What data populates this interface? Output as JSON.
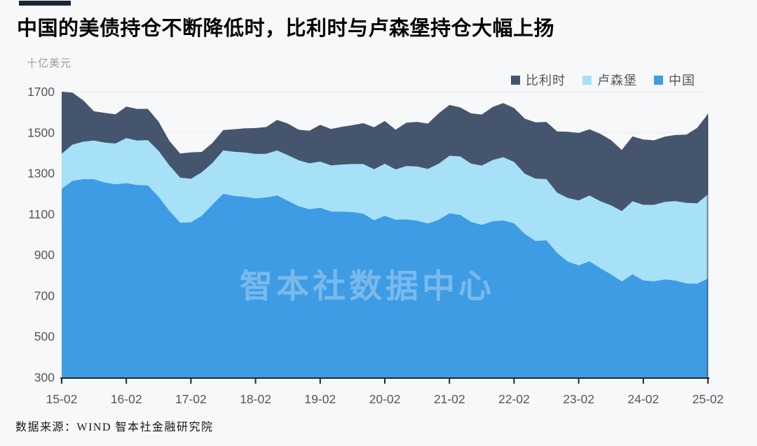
{
  "page": {
    "background_color": "#f7f8fa"
  },
  "header": {
    "accent_color": "#1a2533",
    "title": "中国的美债持仓不断降低时，比利时与卢森堡持仓大幅上扬"
  },
  "axis_unit_label": "十亿美元",
  "legend": {
    "items": [
      {
        "label": "比利时",
        "color": "#46556E"
      },
      {
        "label": "卢森堡",
        "color": "#A6E1F7"
      },
      {
        "label": "中国",
        "color": "#3E9CE4"
      }
    ]
  },
  "watermark": "智本社数据中心",
  "source_line": "数据来源：WIND 智本社金融研究院",
  "chart_data": {
    "type": "area",
    "stacked": true,
    "title": "中国的美债持仓不断降低时，比利时与卢森堡持仓大幅上扬",
    "ylabel": "十亿美元",
    "unit": "十亿美元 (billion USD)",
    "x_start": "2015-02",
    "x_end": "2025-02",
    "x_step_months": 2,
    "x_tick_labels": [
      "15-02",
      "16-02",
      "17-02",
      "18-02",
      "19-02",
      "20-02",
      "21-02",
      "22-02",
      "23-02",
      "24-02",
      "25-02"
    ],
    "ylim": [
      300,
      1700
    ],
    "y_ticks": [
      300,
      500,
      700,
      900,
      1100,
      1300,
      1500,
      1700
    ],
    "grid": "horizontal",
    "legend_position": "top-right",
    "series": [
      {
        "name": "中国",
        "color": "#3E9CE4",
        "values": [
          1224,
          1263,
          1271,
          1271,
          1255,
          1246,
          1252,
          1243,
          1241,
          1185,
          1116,
          1058,
          1060,
          1092,
          1147,
          1200,
          1189,
          1185,
          1177,
          1182,
          1191,
          1165,
          1139,
          1124,
          1131,
          1113,
          1112,
          1110,
          1102,
          1070,
          1092,
          1073,
          1074,
          1068,
          1054,
          1072,
          1104,
          1096,
          1062,
          1047,
          1065,
          1069,
          1055,
          1003,
          968,
          972,
          910,
          867,
          849,
          869,
          835,
          805,
          770,
          805,
          775,
          771,
          780,
          774,
          760,
          759,
          784
        ]
      },
      {
        "name": "卢森堡",
        "color": "#A6E1F7",
        "values": [
          172,
          178,
          184,
          190,
          196,
          200,
          221,
          218,
          222,
          225,
          223,
          221,
          213,
          213,
          204,
          212,
          217,
          217,
          218,
          214,
          221,
          224,
          225,
          225,
          227,
          226,
          231,
          236,
          244,
          250,
          255,
          246,
          262,
          266,
          268,
          275,
          282,
          287,
          286,
          291,
          300,
          310,
          301,
          295,
          306,
          300,
          295,
          312,
          318,
          322,
          329,
          338,
          345,
          358,
          371,
          375,
          380,
          390,
          395,
          394,
          413
        ]
      },
      {
        "name": "比利时",
        "color": "#46556E",
        "values": [
          304,
          255,
          203,
          143,
          145,
          143,
          154,
          155,
          153,
          143,
          120,
          118,
          130,
          100,
          98,
          100,
          110,
          119,
          127,
          131,
          150,
          155,
          150,
          160,
          180,
          178,
          185,
          190,
          200,
          206,
          210,
          195,
          212,
          218,
          222,
          247,
          249,
          240,
          246,
          250,
          260,
          265,
          264,
          270,
          276,
          280,
          300,
          325,
          331,
          325,
          330,
          320,
          300,
          318,
          320,
          316,
          320,
          324,
          335,
          370,
          394
        ]
      }
    ]
  }
}
